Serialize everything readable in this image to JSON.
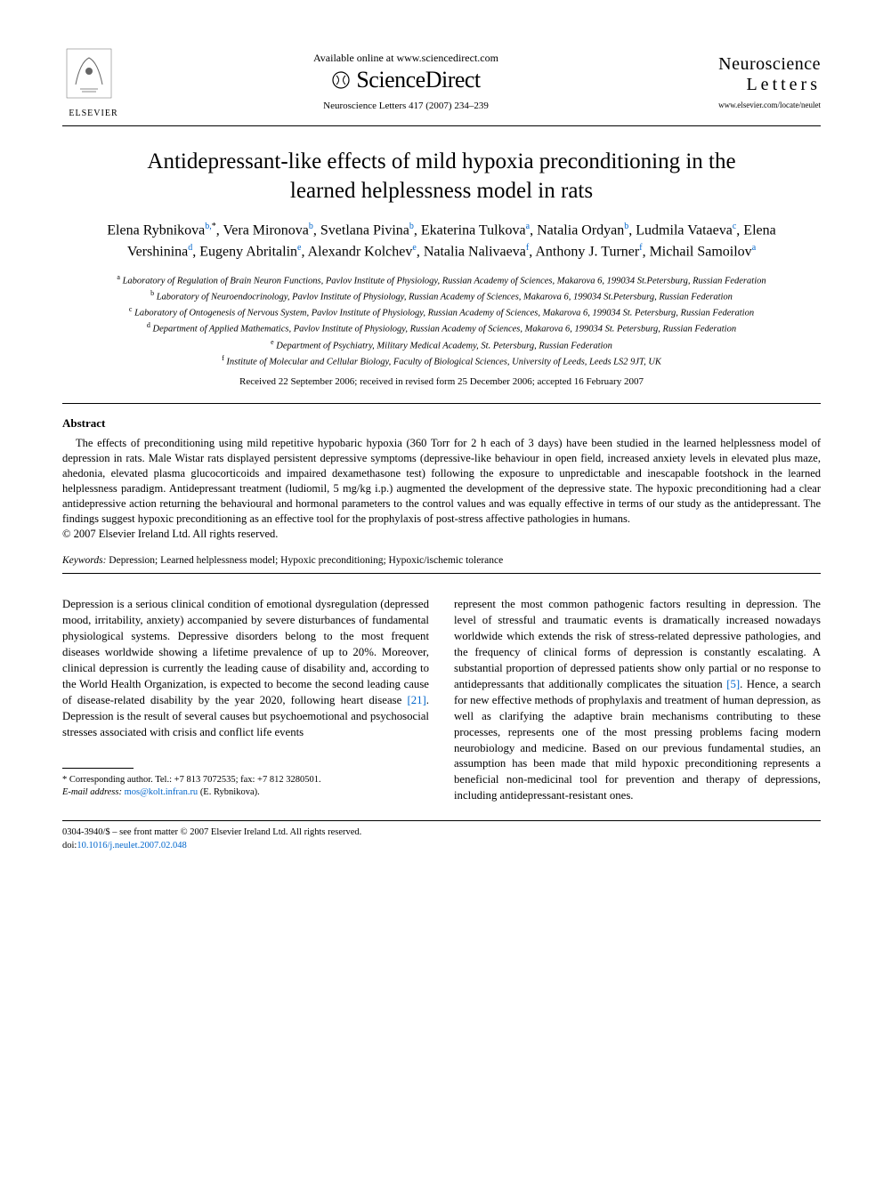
{
  "header": {
    "available_text": "Available online at www.sciencedirect.com",
    "sciencedirect": "ScienceDirect",
    "journal_ref": "Neuroscience Letters 417 (2007) 234–239",
    "publisher": "ELSEVIER",
    "journal_name_1": "Neuroscience",
    "journal_name_2": "Letters",
    "journal_url": "www.elsevier.com/locate/neulet"
  },
  "title": "Antidepressant-like effects of mild hypoxia preconditioning in the learned helplessness model in rats",
  "authors_html": "Elena Rybnikova<sup>b,</sup><sup class='sup-star'>*</sup>, Vera Mironova<sup>b</sup>, Svetlana Pivina<sup>b</sup>, Ekaterina Tulkova<sup>a</sup>, Natalia Ordyan<sup>b</sup>, Ludmila Vataeva<sup>c</sup>, Elena Vershinina<sup>d</sup>, Eugeny Abritalin<sup>e</sup>, Alexandr Kolchev<sup>e</sup>, Natalia Nalivaeva<sup>f</sup>, Anthony J. Turner<sup>f</sup>, Michail Samoilov<sup>a</sup>",
  "affiliations": [
    {
      "sup": "a",
      "text": "Laboratory of Regulation of Brain Neuron Functions, Pavlov Institute of Physiology, Russian Academy of Sciences, Makarova 6, 199034 St.Petersburg, Russian Federation"
    },
    {
      "sup": "b",
      "text": "Laboratory of Neuroendocrinology, Pavlov Institute of Physiology, Russian Academy of Sciences, Makarova 6, 199034 St.Petersburg, Russian Federation"
    },
    {
      "sup": "c",
      "text": "Laboratory of Ontogenesis of Nervous System, Pavlov Institute of Physiology, Russian Academy of Sciences, Makarova 6, 199034 St. Petersburg, Russian Federation"
    },
    {
      "sup": "d",
      "text": "Department of Applied Mathematics, Pavlov Institute of Physiology, Russian Academy of Sciences, Makarova 6, 199034 St. Petersburg, Russian Federation"
    },
    {
      "sup": "e",
      "text": "Department of Psychiatry, Military Medical Academy, St. Petersburg, Russian Federation"
    },
    {
      "sup": "f",
      "text": "Institute of Molecular and Cellular Biology, Faculty of Biological Sciences, University of Leeds, Leeds LS2 9JT, UK"
    }
  ],
  "dates": "Received 22 September 2006; received in revised form 25 December 2006; accepted 16 February 2007",
  "abstract": {
    "heading": "Abstract",
    "text": "The effects of preconditioning using mild repetitive hypobaric hypoxia (360 Torr for 2 h each of 3 days) have been studied in the learned helplessness model of depression in rats. Male Wistar rats displayed persistent depressive symptoms (depressive-like behaviour in open field, increased anxiety levels in elevated plus maze, ahedonia, elevated plasma glucocorticoids and impaired dexamethasone test) following the exposure to unpredictable and inescapable footshock in the learned helplessness paradigm. Antidepressant treatment (ludiomil, 5 mg/kg i.p.) augmented the development of the depressive state. The hypoxic preconditioning had a clear antidepressive action returning the behavioural and hormonal parameters to the control values and was equally effective in terms of our study as the antidepressant. The findings suggest hypoxic preconditioning as an effective tool for the prophylaxis of post-stress affective pathologies in humans.",
    "copyright": "© 2007 Elsevier Ireland Ltd. All rights reserved."
  },
  "keywords": {
    "label": "Keywords:",
    "text": "Depression; Learned helplessness model; Hypoxic preconditioning; Hypoxic/ischemic tolerance"
  },
  "body": {
    "col1": "Depression is a serious clinical condition of emotional dysregulation (depressed mood, irritability, anxiety) accompanied by severe disturbances of fundamental physiological systems. Depressive disorders belong to the most frequent diseases worldwide showing a lifetime prevalence of up to 20%. Moreover, clinical depression is currently the leading cause of disability and, according to the World Health Organization, is expected to become the second leading cause of disease-related disability by the year 2020, following heart disease <span class='ref-link'>[21]</span>. Depression is the result of several causes but psychoemotional and psychosocial stresses associated with crisis and conflict life events",
    "col2": "represent the most common pathogenic factors resulting in depression. The level of stressful and traumatic events is dramatically increased nowadays worldwide which extends the risk of stress-related depressive pathologies, and the frequency of clinical forms of depression is constantly escalating. A substantial proportion of depressed patients show only partial or no response to antidepressants that additionally complicates the situation <span class='ref-link'>[5]</span>. Hence, a search for new effective methods of prophylaxis and treatment of human depression, as well as clarifying the adaptive brain mechanisms contributing to these processes, represents one of the most pressing problems facing modern neurobiology and medicine. Based on our previous fundamental studies, an assumption has been made that mild hypoxic preconditioning represents a beneficial non-medicinal tool for prevention and therapy of depressions, including antidepressant-resistant ones."
  },
  "footnote": {
    "corresponding": "* Corresponding author. Tel.: +7 813 7072535; fax: +7 812 3280501.",
    "email_label": "E-mail address:",
    "email": "mos@kolt.infran.ru",
    "email_who": "(E. Rybnikova)."
  },
  "footer": {
    "line1": "0304-3940/$ – see front matter © 2007 Elsevier Ireland Ltd. All rights reserved.",
    "doi_label": "doi:",
    "doi": "10.1016/j.neulet.2007.02.048"
  },
  "colors": {
    "link": "#0066cc",
    "text": "#000000",
    "background": "#ffffff"
  },
  "typography": {
    "title_fontsize": 25,
    "authors_fontsize": 16,
    "body_fontsize": 12.8,
    "abstract_fontsize": 12.5,
    "affil_fontsize": 10.5
  }
}
